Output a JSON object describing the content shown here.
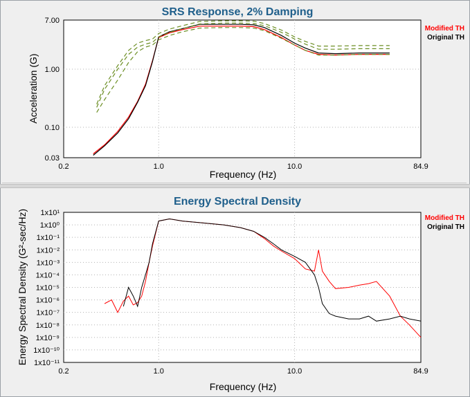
{
  "chart_data": [
    {
      "type": "line",
      "title": "SRS Response, 2% Damping",
      "xlabel": "Frequency (Hz)",
      "ylabel": "Acceleration (G)",
      "xscale": "log",
      "yscale": "log",
      "xlim": [
        0.2,
        84.9
      ],
      "ylim": [
        0.03,
        7.0
      ],
      "x_ticks": [
        "0.2",
        "1.0",
        "10.0",
        "84.9"
      ],
      "y_ticks": [
        "7.00",
        "1.00",
        "0.10",
        "0.03"
      ],
      "grid": true,
      "legend_position": "right",
      "legend": [
        {
          "name": "Modified TH",
          "color": "#ff0000"
        },
        {
          "name": "Original TH",
          "color": "#000000"
        }
      ],
      "series": [
        {
          "name": "Modified TH",
          "color": "#ff0000",
          "x": [
            0.33,
            0.4,
            0.5,
            0.6,
            0.7,
            0.8,
            0.9,
            1.0,
            1.2,
            1.5,
            2.0,
            3.0,
            4.0,
            5.0,
            6.0,
            8.0,
            10.0,
            12.0,
            15.0,
            20.0,
            30.0,
            40.0,
            50.0
          ],
          "y": [
            0.035,
            0.05,
            0.085,
            0.15,
            0.28,
            0.55,
            1.4,
            3.5,
            4.2,
            4.8,
            5.5,
            5.5,
            5.5,
            5.4,
            4.8,
            3.5,
            2.6,
            2.1,
            1.8,
            1.75,
            1.8,
            1.8,
            1.8
          ]
        },
        {
          "name": "Original TH",
          "color": "#000000",
          "x": [
            0.33,
            0.4,
            0.5,
            0.6,
            0.7,
            0.8,
            0.9,
            1.0,
            1.2,
            1.5,
            2.0,
            3.0,
            4.0,
            5.0,
            6.0,
            8.0,
            10.0,
            12.0,
            15.0,
            20.0,
            30.0,
            40.0,
            50.0
          ],
          "y": [
            0.033,
            0.048,
            0.08,
            0.14,
            0.27,
            0.52,
            1.35,
            3.6,
            4.4,
            5.0,
            5.9,
            5.9,
            5.9,
            5.8,
            5.2,
            3.8,
            2.8,
            2.3,
            1.9,
            1.85,
            1.9,
            1.9,
            1.9
          ]
        },
        {
          "name": "",
          "color": "#6b8e23",
          "dashed": true,
          "x": [
            0.35,
            0.4,
            0.5,
            0.6,
            0.7,
            0.8,
            0.9,
            1.0,
            1.2,
            1.5,
            2.0,
            3.0,
            4.0,
            5.0,
            6.0,
            8.0,
            10.0,
            12.0,
            15.0,
            20.0,
            30.0,
            40.0,
            50.0
          ],
          "y": [
            0.22,
            0.45,
            1.0,
            1.8,
            2.4,
            2.7,
            2.9,
            3.6,
            4.3,
            5.0,
            6.0,
            6.2,
            6.2,
            6.1,
            5.6,
            4.3,
            3.3,
            2.7,
            2.2,
            2.2,
            2.25,
            2.25,
            2.25
          ]
        },
        {
          "name": "",
          "color": "#6b8e23",
          "dashed": true,
          "x": [
            0.35,
            0.4,
            0.5,
            0.6,
            0.7,
            0.8,
            0.9,
            1.0,
            1.2,
            1.5,
            2.0,
            3.0,
            4.0,
            5.0,
            6.0,
            8.0,
            10.0,
            12.0,
            15.0,
            20.0,
            30.0,
            40.0,
            50.0
          ],
          "y": [
            0.18,
            0.3,
            0.65,
            1.3,
            2.0,
            2.4,
            2.6,
            3.2,
            3.8,
            4.4,
            5.1,
            5.2,
            5.2,
            5.1,
            4.6,
            3.4,
            2.6,
            2.1,
            1.75,
            1.75,
            1.8,
            1.8,
            1.8
          ]
        },
        {
          "name": "",
          "color": "#6b8e23",
          "dashed": true,
          "x": [
            0.35,
            0.4,
            0.5,
            0.6,
            0.7,
            0.8,
            0.9,
            1.0,
            1.2,
            1.5,
            2.0,
            3.0,
            4.0,
            5.0,
            6.0,
            8.0,
            10.0,
            12.0,
            15.0,
            20.0,
            30.0,
            40.0,
            50.0
          ],
          "y": [
            0.25,
            0.52,
            1.15,
            2.1,
            2.8,
            3.1,
            3.3,
            4.1,
            4.9,
            5.6,
            6.6,
            6.8,
            6.8,
            6.7,
            6.1,
            4.7,
            3.6,
            3.0,
            2.5,
            2.5,
            2.55,
            2.55,
            2.55
          ]
        }
      ]
    },
    {
      "type": "line",
      "title": "Energy Spectral Density",
      "xlabel": "Frequency (Hz)",
      "ylabel": "Energy Spectral Density (G²-sec/Hz)",
      "xscale": "log",
      "yscale": "log",
      "xlim": [
        0.2,
        84.9
      ],
      "ylim": [
        1e-11,
        10
      ],
      "x_ticks": [
        "0.2",
        "1.0",
        "10.0",
        "84.9"
      ],
      "y_ticks": [
        "1x10¹",
        "1x10⁰",
        "1x10⁻¹",
        "1x10⁻²",
        "1x10⁻³",
        "1x10⁻⁴",
        "1x10⁻⁵",
        "1x10⁻⁶",
        "1x10⁻⁷",
        "1x10⁻⁸",
        "1x10⁻⁹",
        "1x10⁻¹⁰",
        "1x10⁻¹¹"
      ],
      "grid": true,
      "legend_position": "right",
      "legend": [
        {
          "name": "Modified TH",
          "color": "#ff0000"
        },
        {
          "name": "Original TH",
          "color": "#000000"
        }
      ],
      "series": [
        {
          "name": "Modified TH",
          "color": "#ff0000",
          "x": [
            0.4,
            0.45,
            0.5,
            0.55,
            0.6,
            0.65,
            0.7,
            0.75,
            0.8,
            0.85,
            0.9,
            1.0,
            1.2,
            1.5,
            2.0,
            3.0,
            4.0,
            5.0,
            6.0,
            7.0,
            8.0,
            10.0,
            12.0,
            14.0,
            15.0,
            16.0,
            18.0,
            20.0,
            25.0,
            30.0,
            35.0,
            40.0,
            50.0,
            60.0,
            70.0,
            84.9
          ],
          "y": [
            5e-07,
            1e-06,
            1e-07,
            8e-07,
            2e-06,
            4e-07,
            6e-07,
            2e-06,
            3e-05,
            0.001,
            0.02,
            2,
            3,
            2,
            1.5,
            1,
            0.6,
            0.3,
            0.08,
            0.02,
            0.008,
            0.002,
            0.0003,
            0.0002,
            0.01,
            0.0002,
            3e-05,
            8e-06,
            1e-05,
            1.5e-05,
            2e-05,
            3e-05,
            2e-06,
            5e-08,
            1e-08,
            1e-09
          ]
        },
        {
          "name": "Original TH",
          "color": "#000000",
          "x": [
            0.55,
            0.6,
            0.65,
            0.7,
            0.75,
            0.8,
            0.85,
            0.9,
            1.0,
            1.2,
            1.5,
            2.0,
            3.0,
            4.0,
            5.0,
            6.0,
            7.0,
            8.0,
            10.0,
            12.0,
            14.0,
            15.0,
            16.0,
            18.0,
            20.0,
            25.0,
            30.0,
            35.0,
            40.0,
            50.0,
            60.0,
            70.0,
            84.9
          ],
          "y": [
            3e-07,
            1e-05,
            2e-06,
            3e-07,
            1e-05,
            0.0001,
            0.001,
            0.03,
            2,
            3,
            2,
            1.5,
            1,
            0.6,
            0.3,
            0.1,
            0.03,
            0.01,
            0.003,
            0.001,
            0.0001,
            1e-05,
            5e-07,
            8e-08,
            5e-08,
            3e-08,
            3e-08,
            5e-08,
            2e-08,
            3e-08,
            5e-08,
            3e-08,
            2e-08
          ]
        }
      ]
    }
  ]
}
